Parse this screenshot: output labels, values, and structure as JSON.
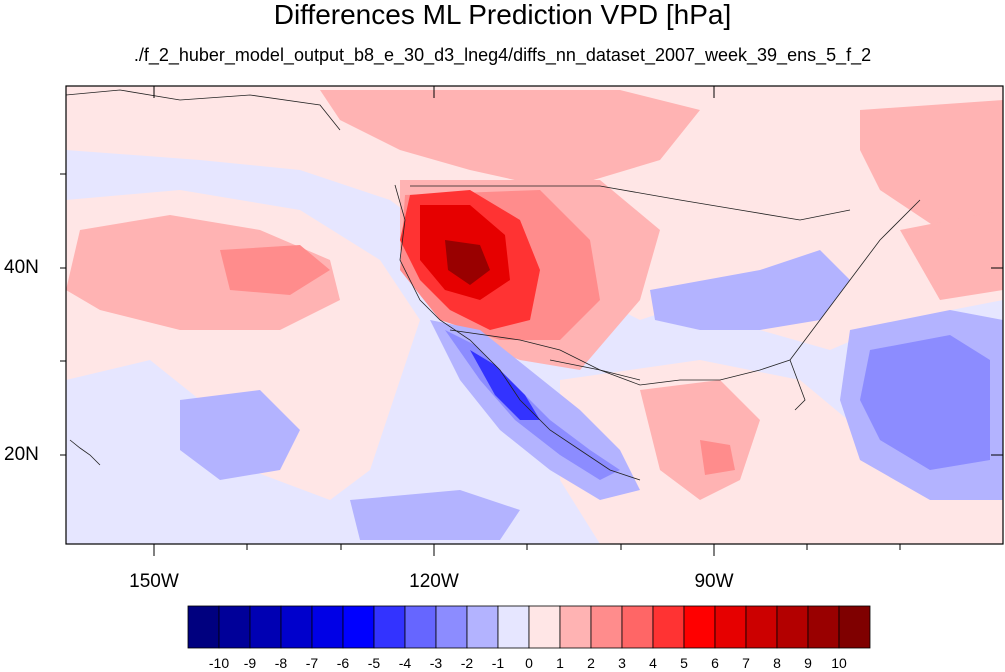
{
  "title": "Differences ML Prediction VPD [hPa]",
  "subtitle": "./f_2_huber_model_output_b8_e_30_d3_lneg4/diffs_nn_dataset_2007_week_39_ens_5_f_2",
  "lat_labels": [
    "40N",
    "20N"
  ],
  "lon_labels": [
    "150W",
    "120W",
    "90W"
  ],
  "colorbar": {
    "labels": [
      "-10",
      "-9",
      "-8",
      "-7",
      "-6",
      "-5",
      "-4",
      "-3",
      "-2",
      "-1",
      "0",
      "1",
      "2",
      "3",
      "4",
      "5",
      "6",
      "7",
      "8",
      "9",
      "10"
    ],
    "colors": [
      "#00007f",
      "#000099",
      "#0000b3",
      "#0000cc",
      "#0000e6",
      "#0000ff",
      "#3333ff",
      "#6666ff",
      "#8c8cff",
      "#b3b3ff",
      "#e6e6ff",
      "#ffe6e6",
      "#ffb3b3",
      "#ff8c8c",
      "#ff6666",
      "#ff3333",
      "#ff0000",
      "#e60000",
      "#cc0000",
      "#b30000",
      "#990000",
      "#7f0000"
    ]
  },
  "map_colors": {
    "ocean_bg": "#e6e6ff",
    "pink": "#ffe6e6",
    "light_red": "#ffb3b3",
    "mid_red": "#ff8c8c",
    "red": "#ff3333",
    "dark_red": "#e60000",
    "deep_red": "#990000",
    "light_blue": "#b3b3ff",
    "mid_blue": "#8c8cff",
    "blue": "#3333ff",
    "coast": "#222222"
  }
}
